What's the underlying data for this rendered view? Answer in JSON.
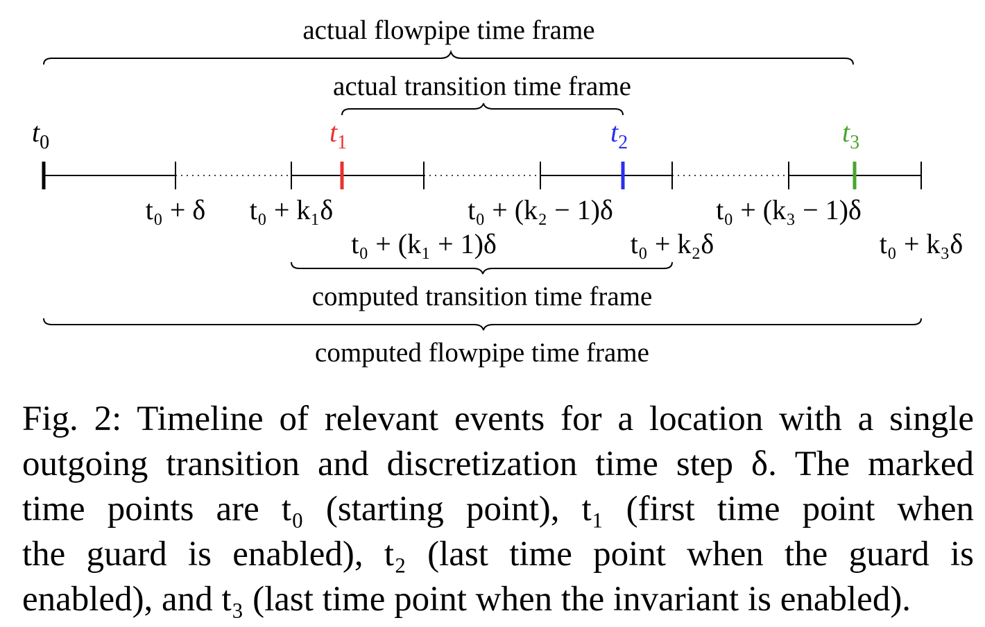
{
  "frames": {
    "actual_flowpipe": "actual flowpipe time frame",
    "actual_transition": "actual transition time frame",
    "computed_transition": "computed transition time frame",
    "computed_flowpipe": "computed flowpipe time frame"
  },
  "time_points": [
    {
      "base": "t",
      "sub": "0",
      "color": "#000000"
    },
    {
      "base": "t",
      "sub": "1",
      "color": "#e8322d"
    },
    {
      "base": "t",
      "sub": "2",
      "color": "#2a2ef0"
    },
    {
      "base": "t",
      "sub": "3",
      "color": "#4aa52e"
    }
  ],
  "tick_labels": {
    "t0_plus_delta": "t₀ + δ",
    "t0_plus_k1_delta": "t₀ + k₁δ",
    "t0_plus_k1p1_delta": "t₀ + (k₁ + 1)δ",
    "t0_plus_k2m1_delta": "t₀ + (k₂ − 1)δ",
    "t0_plus_k2_delta": "t₀ + k₂δ",
    "t0_plus_k3m1_delta": "t₀ + (k₃ − 1)δ",
    "t0_plus_k3_delta": "t₀ + k₃δ"
  },
  "caption": {
    "line1": "Fig. 2: Timeline of relevant events for a location with a single",
    "line2": "outgoing transition and discretization time step δ. The marked",
    "line3": "time points are t₀ (starting point), t₁ (first time point when",
    "line4": "the guard is enabled), t₂ (last time point when the guard is",
    "line5": "enabled), and t₃ (last time point when the invariant is enabled)."
  }
}
